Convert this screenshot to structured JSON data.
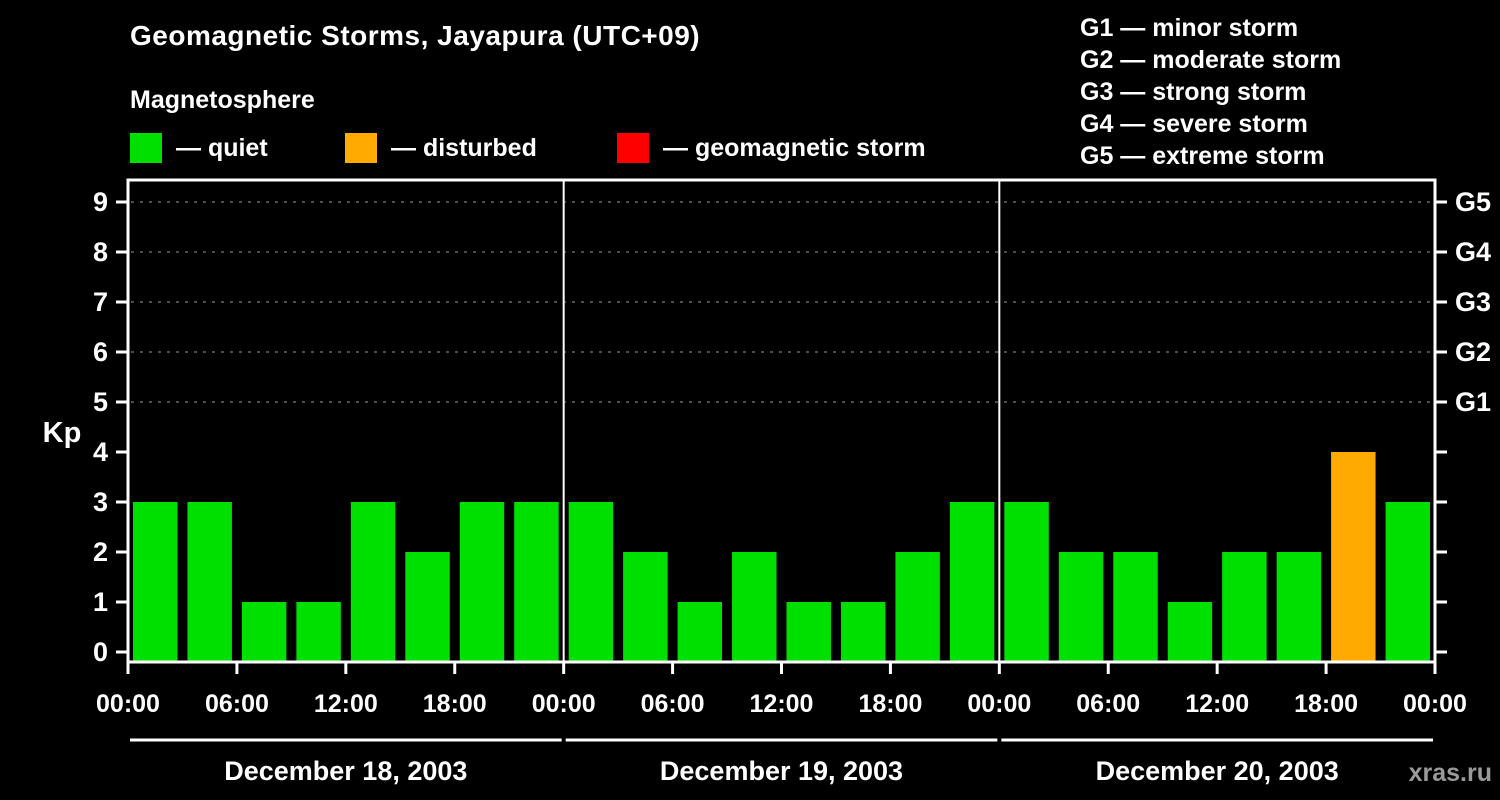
{
  "header": {
    "title": "Geomagnetic Storms, Jayapura (UTC+09)",
    "subtitle": "Magnetosphere"
  },
  "legend": {
    "items": [
      {
        "label": "— quiet",
        "color": "#00e000"
      },
      {
        "label": "— disturbed",
        "color": "#ffaa00"
      },
      {
        "label": "— geomagnetic storm",
        "color": "#ff0000"
      }
    ]
  },
  "g_legend": {
    "items": [
      {
        "text": "G1 — minor storm"
      },
      {
        "text": "G2 — moderate storm"
      },
      {
        "text": "G3 — strong storm"
      },
      {
        "text": "G4 — severe storm"
      },
      {
        "text": "G5 — extreme storm"
      }
    ]
  },
  "watermark": "xras.ru",
  "chart_data": {
    "type": "bar",
    "title": "Geomagnetic Storms, Jayapura (UTC+09)",
    "ylabel": "Kp",
    "ylim": [
      0,
      9
    ],
    "yticks": [
      0,
      1,
      2,
      3,
      4,
      5,
      6,
      7,
      8,
      9
    ],
    "gridlines_at": [
      5,
      6,
      7,
      8,
      9
    ],
    "right_axis_labels": [
      {
        "label": "G1",
        "level": 5
      },
      {
        "label": "G2",
        "level": 6
      },
      {
        "label": "G3",
        "level": 7
      },
      {
        "label": "G4",
        "level": 8
      },
      {
        "label": "G5",
        "level": 9
      }
    ],
    "x_tick_labels": [
      "00:00",
      "06:00",
      "12:00",
      "18:00"
    ],
    "x_final_tick_label": "00:00",
    "interval_hours": 3,
    "days": [
      {
        "date": "December 18, 2003",
        "values": [
          3,
          3,
          1,
          1,
          3,
          2,
          3,
          3
        ]
      },
      {
        "date": "December 19, 2003",
        "values": [
          3,
          2,
          1,
          2,
          1,
          1,
          2,
          3
        ]
      },
      {
        "date": "December 20, 2003",
        "values": [
          3,
          2,
          2,
          1,
          2,
          2,
          4,
          3
        ]
      }
    ],
    "colors": {
      "quiet": "#00e000",
      "disturbed": "#ffaa00",
      "storm": "#ff0000"
    },
    "thresholds": {
      "quiet_max": 3,
      "disturbed_max": 4
    }
  }
}
